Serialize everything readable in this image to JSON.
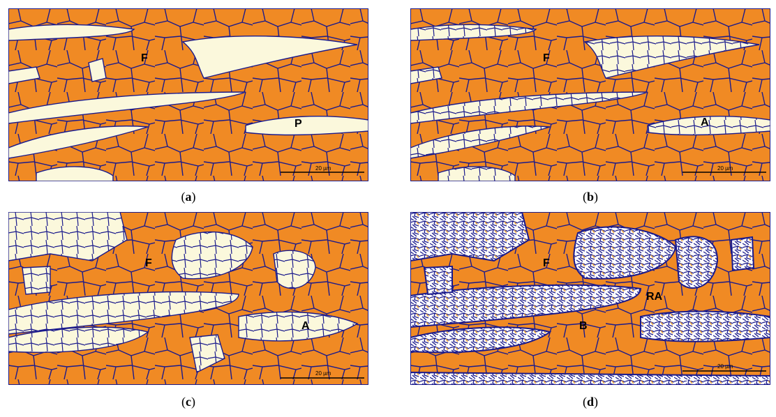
{
  "panels": [
    {
      "id": "a",
      "caption_letter": "a",
      "labels": {
        "f": "F",
        "p": "P"
      },
      "scale_bar": "20 µm"
    },
    {
      "id": "b",
      "caption_letter": "b",
      "labels": {
        "f": "F",
        "a": "A"
      },
      "scale_bar": "20 µm"
    },
    {
      "id": "c",
      "caption_letter": "c",
      "labels": {
        "f": "F",
        "a": "A"
      },
      "scale_bar": "20 µm"
    },
    {
      "id": "d",
      "caption_letter": "d",
      "labels": {
        "f": "F",
        "ra": "RA",
        "b": "B"
      },
      "scale_bar": "20 µm"
    }
  ],
  "colors": {
    "ferrite": "#F08A24",
    "second_phase": "#FBF8DC",
    "boundary": "#1A1A8C",
    "bainite_fill": "#FFFFFF",
    "bainite_accent": "#E8A23A"
  }
}
